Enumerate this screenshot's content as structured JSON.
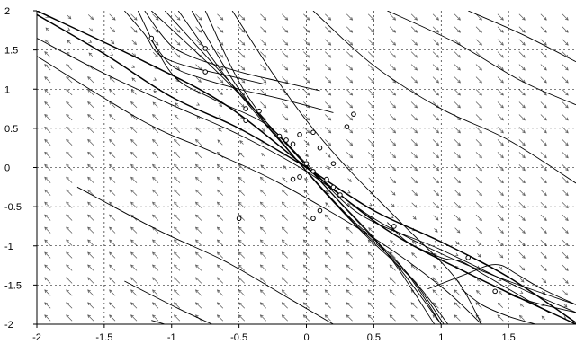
{
  "chart_data": {
    "type": "line",
    "subtype": "phase-portrait",
    "title": "",
    "xlabel": "",
    "ylabel": "",
    "xlim": [
      -2,
      2
    ],
    "ylim": [
      -2,
      2
    ],
    "grid": true,
    "x_ticks": [
      "-2",
      "-1.5",
      "-1",
      "-0.5",
      "0",
      "0.5",
      "1",
      "1.5"
    ],
    "y_ticks": [
      "2",
      "1.5",
      "1",
      "0.5",
      "0",
      "-0.5",
      "-1",
      "-1.5",
      "-2"
    ],
    "x_tick_values": [
      -2,
      -1.5,
      -1,
      -0.5,
      0,
      0.5,
      1,
      1.5
    ],
    "y_tick_values": [
      2,
      1.5,
      1,
      0.5,
      0,
      -0.5,
      -1,
      -1.5,
      -2
    ],
    "colors": {
      "curve": "#000000",
      "grid": "#000000",
      "background": "#ffffff"
    },
    "direction_field": {
      "grid_n": 25,
      "upper_right_direction": "down-right",
      "lower_left_direction": "up-left"
    },
    "series": [
      {
        "values": [
          [
            -2,
            2
          ],
          [
            -1.2,
            1.35
          ],
          [
            -0.6,
            0.8
          ],
          [
            0,
            0
          ],
          [
            0.6,
            -0.8
          ],
          [
            1.2,
            -1.35
          ],
          [
            2,
            -2
          ]
        ]
      },
      {
        "values": [
          [
            -2,
            1.95
          ],
          [
            -1.5,
            1.45
          ],
          [
            -1,
            0.9
          ],
          [
            -0.5,
            0.5
          ],
          [
            0,
            0
          ],
          [
            0.5,
            -0.55
          ],
          [
            1,
            -0.95
          ],
          [
            1.5,
            -1.4
          ],
          [
            2,
            -1.98
          ]
        ]
      },
      {
        "values": [
          [
            -1.25,
            2
          ],
          [
            -1.0,
            1.2
          ],
          [
            -0.7,
            0.88
          ],
          [
            -0.3,
            0.55
          ],
          [
            0,
            0.05
          ],
          [
            0.4,
            -0.6
          ],
          [
            1,
            -1.05
          ],
          [
            1.6,
            -1.55
          ],
          [
            2,
            -1.85
          ]
        ]
      },
      {
        "values": [
          [
            -2,
            1.65
          ],
          [
            -1.5,
            1.2
          ],
          [
            -1,
            0.8
          ],
          [
            -0.5,
            0.42
          ],
          [
            0,
            -0.05
          ],
          [
            0.5,
            -0.65
          ],
          [
            1,
            -1.1
          ],
          [
            1.5,
            -1.45
          ],
          [
            2,
            -1.75
          ]
        ]
      },
      {
        "values": [
          [
            -2,
            1.42
          ],
          [
            -1.2,
            0.58
          ],
          [
            -0.7,
            0.2
          ],
          [
            -0.2,
            -0.2
          ],
          [
            0.5,
            -0.9
          ],
          [
            1,
            -1.52
          ],
          [
            1.3,
            -2
          ]
        ]
      },
      {
        "values": [
          [
            -1.7,
            -0.25
          ],
          [
            -1.1,
            -0.8
          ],
          [
            -0.6,
            -1.2
          ],
          [
            -0.1,
            -1.7
          ],
          [
            0.2,
            -2
          ]
        ]
      },
      {
        "values": [
          [
            -1.35,
            -1.45
          ],
          [
            -0.95,
            -1.8
          ],
          [
            -0.7,
            -2
          ]
        ]
      },
      {
        "values": [
          [
            -1.15,
            -1.95
          ],
          [
            -1.05,
            -2
          ]
        ]
      },
      {
        "values": [
          [
            -0.55,
            2
          ],
          [
            -0.25,
            1.2
          ],
          [
            0,
            0.6
          ],
          [
            0.3,
            0
          ],
          [
            0.7,
            -0.7
          ],
          [
            1.1,
            -1.4
          ],
          [
            1.3,
            -2
          ]
        ]
      },
      {
        "values": [
          [
            0.05,
            2
          ],
          [
            0.5,
            1.3
          ],
          [
            1,
            0.75
          ],
          [
            1.5,
            0.35
          ],
          [
            2,
            -0.2
          ]
        ]
      },
      {
        "values": [
          [
            0.6,
            2
          ],
          [
            1.1,
            1.6
          ],
          [
            1.6,
            1.1
          ],
          [
            2,
            0.8
          ]
        ]
      },
      {
        "values": [
          [
            1.2,
            2
          ],
          [
            1.6,
            1.7
          ],
          [
            2,
            1.35
          ]
        ]
      },
      {
        "values": [
          [
            -1.05,
            2
          ],
          [
            -0.6,
            1.15
          ],
          [
            -0.15,
            0.3
          ],
          [
            0.25,
            -0.45
          ],
          [
            0.65,
            -1.2
          ],
          [
            1.0,
            -2
          ]
        ]
      },
      {
        "values": [
          [
            -0.95,
            2
          ],
          [
            -0.55,
            1.05
          ],
          [
            -0.1,
            0.15
          ],
          [
            0.3,
            -0.6
          ],
          [
            0.7,
            -1.25
          ],
          [
            1.0,
            -2
          ]
        ]
      },
      {
        "values": [
          [
            -0.85,
            2
          ],
          [
            -0.5,
            1.0
          ],
          [
            -0.05,
            0.05
          ],
          [
            0.35,
            -0.7
          ],
          [
            0.75,
            -1.35
          ],
          [
            1.02,
            -2
          ]
        ]
      },
      {
        "values": [
          [
            -0.75,
            2
          ],
          [
            -0.45,
            0.95
          ],
          [
            0,
            -0.05
          ],
          [
            0.4,
            -0.8
          ],
          [
            0.8,
            -1.45
          ],
          [
            1.05,
            -2
          ]
        ]
      },
      {
        "values": [
          [
            -1.15,
            2
          ],
          [
            -0.65,
            1.2
          ],
          [
            -0.2,
            0.4
          ],
          [
            0.2,
            -0.35
          ],
          [
            0.6,
            -1.1
          ],
          [
            0.95,
            -2
          ]
        ]
      },
      {
        "values": [
          [
            -1.2,
            2
          ],
          [
            -1.1,
            1.75
          ],
          [
            -1.0,
            1.55
          ],
          [
            -0.9,
            1.45
          ],
          [
            -0.75,
            1.35
          ],
          [
            -0.45,
            1.2
          ],
          [
            -0.2,
            1.1
          ],
          [
            0,
            1.02
          ],
          [
            0.1,
            0.98
          ]
        ]
      },
      {
        "values": [
          [
            -1.15,
            1.62
          ],
          [
            -1.0,
            1.3
          ],
          [
            -0.8,
            1.15
          ],
          [
            -0.5,
            1.0
          ],
          [
            -0.2,
            0.88
          ],
          [
            0.2,
            0.7
          ]
        ]
      },
      {
        "values": [
          [
            -1.35,
            2
          ],
          [
            -1.2,
            1.7
          ],
          [
            -1.1,
            1.45
          ],
          [
            -0.9,
            1.3
          ],
          [
            -0.6,
            1.18
          ],
          [
            -0.3,
            1.06
          ]
        ]
      },
      {
        "values": [
          [
            0.9,
            -1.55
          ],
          [
            1.2,
            -1.35
          ],
          [
            1.35,
            -1.25
          ],
          [
            1.45,
            -1.25
          ],
          [
            1.55,
            -1.35
          ],
          [
            1.75,
            -1.55
          ],
          [
            2,
            -1.75
          ]
        ]
      },
      {
        "values": [
          [
            0.6,
            -0.7
          ],
          [
            0.75,
            -0.95
          ],
          [
            1.0,
            -1.15
          ],
          [
            1.15,
            -1.2
          ],
          [
            1.3,
            -1.35
          ],
          [
            1.5,
            -1.55
          ],
          [
            1.8,
            -1.85
          ]
        ]
      },
      {
        "values": [
          [
            1.15,
            -1.55
          ],
          [
            1.3,
            -1.75
          ],
          [
            1.5,
            -1.9
          ],
          [
            1.7,
            -2
          ]
        ]
      },
      {
        "values": [
          [
            1.45,
            -1.55
          ],
          [
            1.55,
            -1.65
          ],
          [
            1.75,
            -1.75
          ],
          [
            2,
            -1.85
          ]
        ]
      }
    ],
    "initial_points": [
      [
        -1.15,
        1.65
      ],
      [
        -0.75,
        1.52
      ],
      [
        -0.75,
        1.22
      ],
      [
        -0.45,
        0.75
      ],
      [
        -0.35,
        0.72
      ],
      [
        -0.45,
        0.6
      ],
      [
        -0.2,
        0.4
      ],
      [
        -0.15,
        0.35
      ],
      [
        -0.1,
        0.3
      ],
      [
        -0.05,
        0.42
      ],
      [
        0.05,
        0.45
      ],
      [
        0.1,
        0.25
      ],
      [
        0.35,
        0.68
      ],
      [
        0.3,
        0.52
      ],
      [
        0,
        0.05
      ],
      [
        -0.05,
        -0.12
      ],
      [
        0.05,
        -0.05
      ],
      [
        0.15,
        -0.15
      ],
      [
        0.2,
        -0.25
      ],
      [
        0.25,
        -0.35
      ],
      [
        0.1,
        -0.55
      ],
      [
        0.05,
        -0.65
      ],
      [
        -0.5,
        -0.65
      ],
      [
        -0.1,
        -0.15
      ],
      [
        0.2,
        0.05
      ],
      [
        1.2,
        -1.15
      ],
      [
        0.65,
        -0.75
      ],
      [
        1.4,
        -1.58
      ]
    ]
  }
}
